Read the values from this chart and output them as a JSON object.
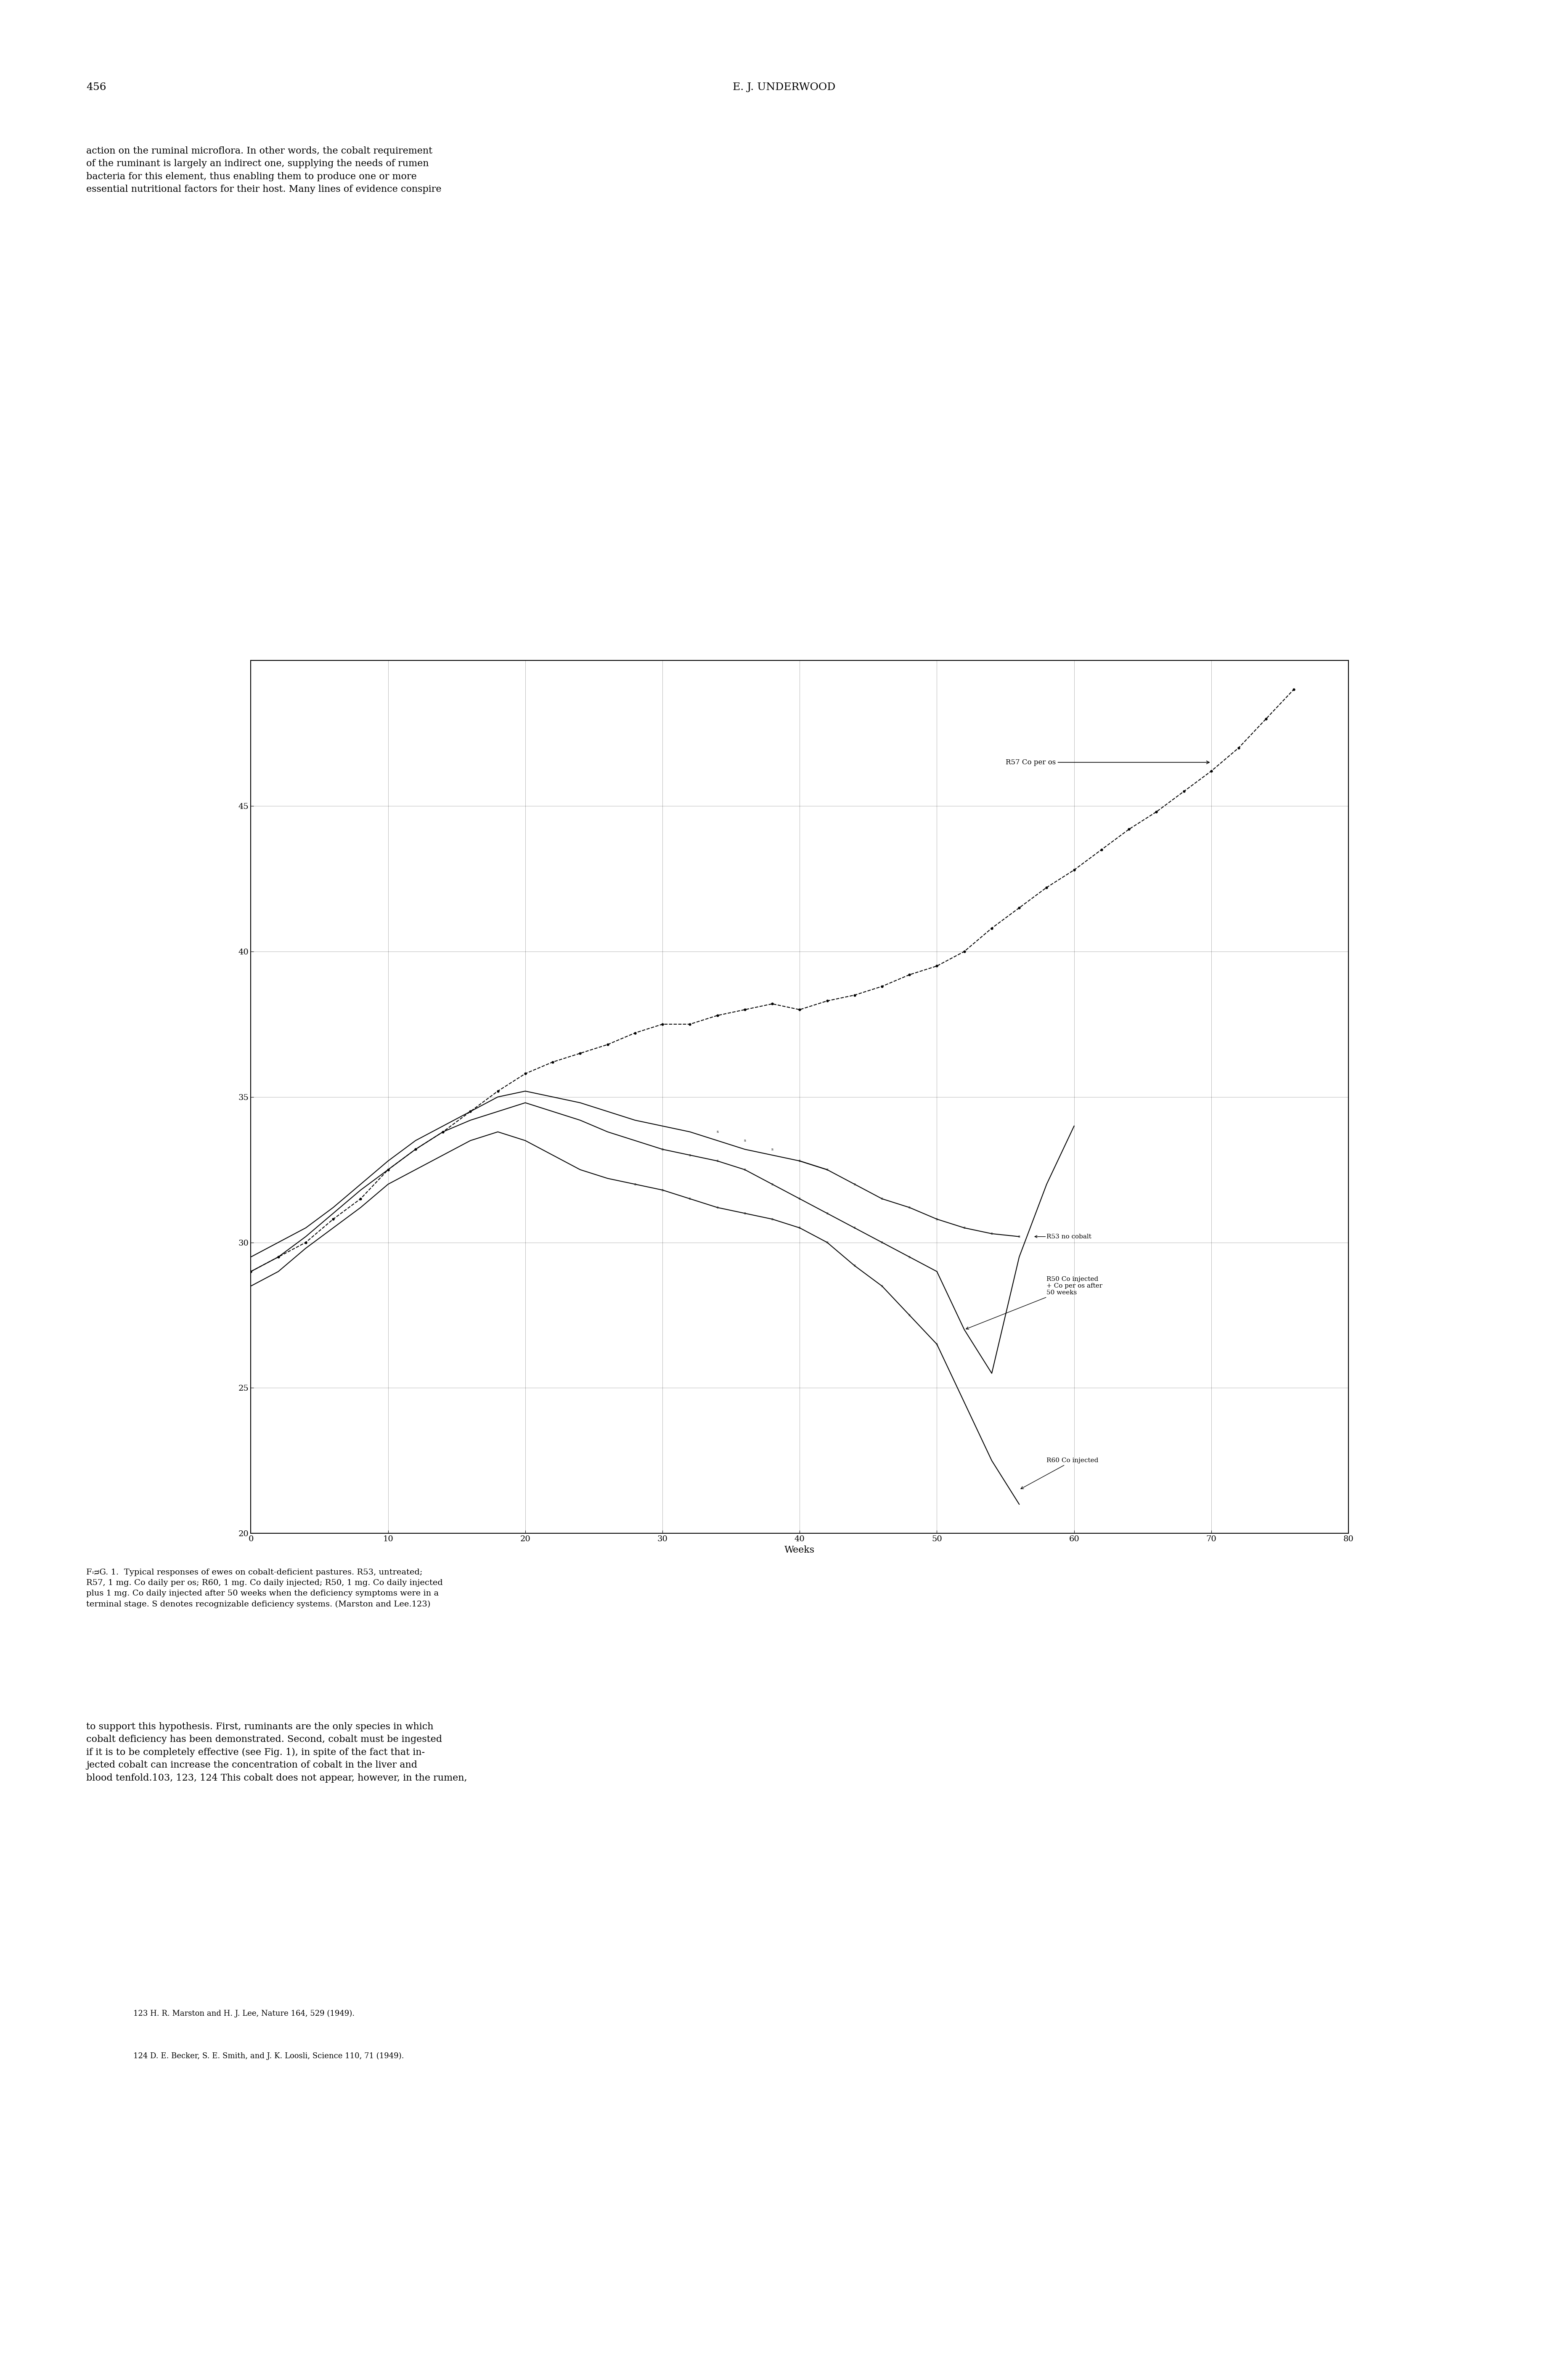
{
  "page_number": "456",
  "header_title": "E. J. UNDERWOOD",
  "header_text": "action on the ruminal microflora. In other words, the cobalt requirement\nof the ruminant is largely an indirect one, supplying the needs of rumen\nbacteria for this element, thus enabling them to produce one or more\nessential nutritional factors for their host. Many lines of evidence conspire",
  "xlabel": "Weeks",
  "ylabel": "",
  "xlim": [
    0,
    80
  ],
  "ylim": [
    20,
    50
  ],
  "xticks": [
    0,
    10,
    20,
    30,
    40,
    50,
    60,
    70,
    80
  ],
  "yticks": [
    20,
    25,
    30,
    35,
    40,
    45
  ],
  "R57_x": [
    0,
    2,
    4,
    6,
    8,
    10,
    12,
    14,
    16,
    18,
    20,
    22,
    24,
    26,
    28,
    30,
    32,
    34,
    36,
    38,
    40,
    42,
    44,
    46,
    48,
    50,
    52,
    54,
    56,
    58,
    60,
    62,
    64,
    66,
    68,
    70,
    72,
    74,
    76
  ],
  "R57_y": [
    29.0,
    29.5,
    30.0,
    30.8,
    31.5,
    32.5,
    33.2,
    33.8,
    34.5,
    35.2,
    35.8,
    36.2,
    36.5,
    36.8,
    37.2,
    37.5,
    37.5,
    37.8,
    38.0,
    38.2,
    38.0,
    38.3,
    38.5,
    38.8,
    39.2,
    39.5,
    40.0,
    40.8,
    41.5,
    42.2,
    42.8,
    43.5,
    44.2,
    44.8,
    45.5,
    46.2,
    47.0,
    48.0,
    49.0
  ],
  "R53_x": [
    0,
    2,
    4,
    6,
    8,
    10,
    12,
    14,
    16,
    18,
    20,
    22,
    24,
    26,
    28,
    30,
    32,
    34,
    36,
    38,
    40,
    42,
    44,
    46,
    48,
    50,
    52,
    54,
    56
  ],
  "R53_y": [
    29.5,
    30.0,
    30.5,
    31.2,
    32.0,
    32.8,
    33.5,
    34.0,
    34.5,
    35.0,
    35.2,
    35.0,
    34.8,
    34.5,
    34.2,
    34.0,
    33.8,
    33.5,
    33.2,
    33.0,
    32.8,
    32.5,
    32.0,
    31.5,
    31.2,
    30.8,
    30.5,
    30.3,
    30.2
  ],
  "R53_s_x": [
    34,
    36,
    38,
    40,
    42,
    44,
    46,
    48,
    50,
    52,
    54,
    56
  ],
  "R53_s_y": [
    33.8,
    33.5,
    33.2,
    32.8,
    32.5,
    32.0,
    31.5,
    31.2,
    30.8,
    30.5,
    30.3,
    30.2
  ],
  "R50_x": [
    0,
    2,
    4,
    6,
    8,
    10,
    12,
    14,
    16,
    18,
    20,
    22,
    24,
    26,
    28,
    30,
    32,
    34,
    36,
    38,
    40,
    42,
    44,
    46,
    48,
    50,
    52,
    54,
    56,
    58,
    60
  ],
  "R50_y": [
    29.0,
    29.5,
    30.2,
    31.0,
    31.8,
    32.5,
    33.2,
    33.8,
    34.2,
    34.5,
    34.8,
    34.5,
    34.2,
    33.8,
    33.5,
    33.2,
    33.0,
    32.8,
    32.5,
    32.0,
    31.5,
    31.0,
    30.5,
    30.0,
    29.5,
    29.0,
    27.0,
    25.5,
    29.5,
    32.0,
    34.0
  ],
  "R50_s_x": [
    30,
    32,
    34,
    36,
    38,
    40,
    42,
    44,
    46,
    48
  ],
  "R50_s_y": [
    33.2,
    33.0,
    32.8,
    32.5,
    32.0,
    31.5,
    31.0,
    30.5,
    30.0,
    29.5
  ],
  "R60_x": [
    0,
    2,
    4,
    6,
    8,
    10,
    12,
    14,
    16,
    18,
    20,
    22,
    24,
    26,
    28,
    30,
    32,
    34,
    36,
    38,
    40,
    42,
    44,
    46,
    48,
    50,
    52,
    54,
    56
  ],
  "R60_y": [
    28.5,
    29.0,
    29.8,
    30.5,
    31.2,
    32.0,
    32.5,
    33.0,
    33.5,
    33.8,
    33.5,
    33.0,
    32.5,
    32.2,
    32.0,
    31.8,
    31.5,
    31.2,
    31.0,
    30.8,
    30.5,
    30.0,
    29.2,
    28.5,
    27.5,
    26.5,
    24.5,
    22.5,
    21.0
  ],
  "R60_s_x": [
    28,
    30,
    32,
    34,
    36,
    38,
    40,
    42,
    44,
    46,
    48,
    50
  ],
  "R60_s_y": [
    32.0,
    31.8,
    31.5,
    31.2,
    31.0,
    30.8,
    30.5,
    30.0,
    29.2,
    28.5,
    27.5,
    26.5
  ],
  "caption": "FIG. 1.  Typical responses of ewes on cobalt-deficient pastures. R53, untreated;\nR57, 1 mg. Co daily per os; R60, 1 mg. Co daily injected; R50, 1 mg. Co daily injected\nplus 1 mg. Co daily injected after 50 weeks when the deficiency symptoms were in a\nterminal stage. S denotes recognizable deficiency systems. (Marston and Lee.123)",
  "footer_text": "to support this hypothesis. First, ruminants are the only species in which\ncobalt deficiency has been demonstrated. Second, cobalt must be ingested\nif it is to be completely effective (see Fig. 1), in spite of the fact that in-\njected cobalt can increase the concentration of cobalt in the liver and\nblood tenfold.103, 123, 124 This cobalt does not appear, however, in the rumen,",
  "footnote1": "123 H. R. Marston and H. J. Lee, Nature 164, 529 (1949).",
  "footnote2": "124 D. E. Becker, S. E. Smith, and J. K. Loosli, Science 110, 71 (1949).",
  "bg_color": "#ffffff",
  "line_color": "#000000"
}
